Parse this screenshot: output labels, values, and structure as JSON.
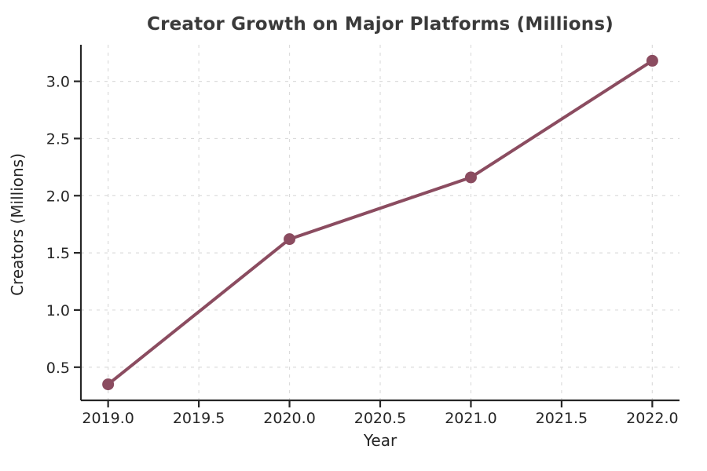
{
  "chart_data": {
    "type": "line",
    "title": "Creator Growth on Major Platforms (Millions)",
    "xlabel": "Year",
    "ylabel": "Creators (Millions)",
    "x": [
      2019,
      2020,
      2021,
      2022
    ],
    "values": [
      0.35,
      1.62,
      2.16,
      3.18
    ],
    "xticks": {
      "values": [
        2019.0,
        2019.5,
        2020.0,
        2020.5,
        2021.0,
        2021.5,
        2022.0
      ],
      "labels": [
        "2019.0",
        "2019.5",
        "2020.0",
        "2020.5",
        "2021.0",
        "2021.5",
        "2022.0"
      ]
    },
    "yticks": {
      "values": [
        0.5,
        1.0,
        1.5,
        2.0,
        2.5,
        3.0
      ],
      "labels": [
        "0.5",
        "1.0",
        "1.5",
        "2.0",
        "2.5",
        "3.0"
      ]
    },
    "xlim": [
      2018.85,
      2022.15
    ],
    "ylim": [
      0.21,
      3.32
    ],
    "grid": true,
    "grid_style": "dashed",
    "legend_position": "none",
    "colors": {
      "line": "#8B4C60",
      "marker": "#8B4C60",
      "grid": "#dcdcdc",
      "axis": "#262626",
      "tick_label": "#262626",
      "title": "#3a3a3a",
      "background": "#ffffff"
    }
  }
}
